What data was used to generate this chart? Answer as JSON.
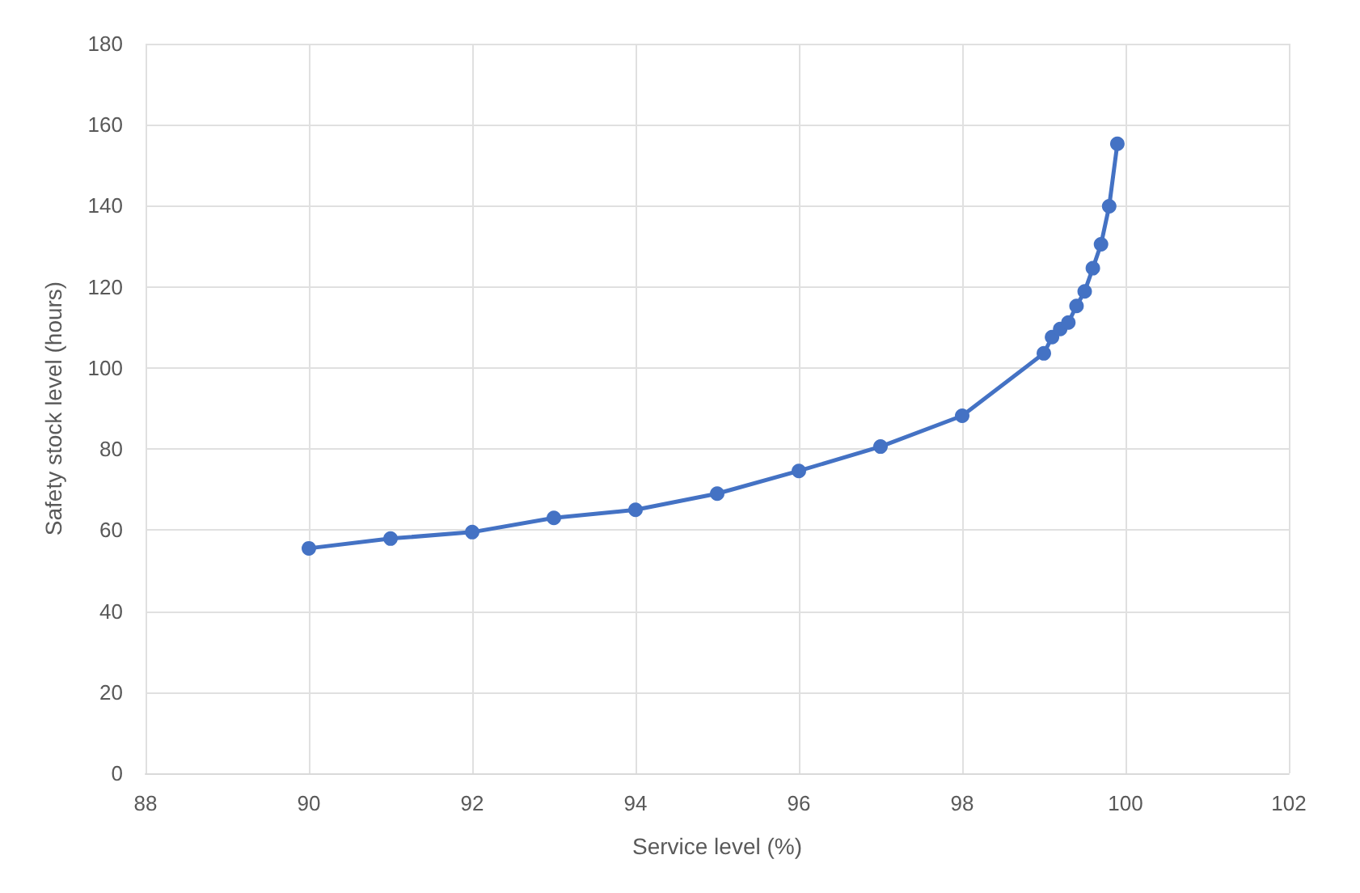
{
  "chart_data": {
    "type": "line",
    "xlabel": "Service level (%)",
    "ylabel": "Safety stock level (hours)",
    "x": [
      90,
      91,
      92,
      93,
      94,
      95,
      96,
      97,
      98,
      99,
      99.1,
      99.2,
      99.3,
      99.4,
      99.5,
      99.6,
      99.7,
      99.8,
      99.9
    ],
    "series": [
      {
        "color": "#4472c4",
        "values": [
          55.5,
          57.9,
          59.5,
          63,
          65,
          69,
          74.6,
          80.6,
          88.2,
          103.6,
          107.6,
          109.6,
          111.2,
          115.3,
          118.9,
          124.6,
          130.5,
          139.9,
          155.3
        ]
      }
    ],
    "xlim": [
      88,
      102
    ],
    "xticks": [
      88,
      90,
      92,
      94,
      96,
      98,
      100,
      102
    ],
    "ylim": [
      0,
      180
    ],
    "yticks": [
      0,
      20,
      40,
      60,
      80,
      100,
      120,
      140,
      160,
      180
    ],
    "grid": true,
    "marker": "circle",
    "line_style": "solid"
  }
}
